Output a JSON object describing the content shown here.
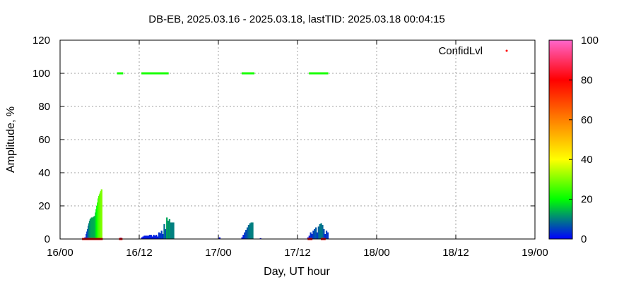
{
  "chart_data": {
    "type": "bar",
    "title": "DB-EB, 2025.03.16 - 2025.03.18, lastTID: 2025.03.18 00:04:15",
    "xlabel": "Day, UT hour",
    "ylabel": "Amplitude, %",
    "xlim": [
      0,
      72
    ],
    "ylim": [
      0,
      120
    ],
    "grid": true,
    "x_ticks": [
      {
        "x": 0,
        "label": "16/00"
      },
      {
        "x": 12,
        "label": "16/12"
      },
      {
        "x": 24,
        "label": "17/00"
      },
      {
        "x": 36,
        "label": "17/12"
      },
      {
        "x": 48,
        "label": "18/00"
      },
      {
        "x": 60,
        "label": "18/12"
      },
      {
        "x": 72,
        "label": "19/00"
      }
    ],
    "y_ticks": [
      0,
      20,
      40,
      60,
      80,
      100,
      120
    ],
    "legend": {
      "entries": [
        "ConfidLvl"
      ],
      "position": "top-right",
      "color": "#ff0000"
    },
    "colorbar": {
      "range": [
        0,
        100
      ],
      "ticks": [
        0,
        20,
        40,
        60,
        80,
        100
      ],
      "colors": [
        "#0000ff",
        "#00ff00",
        "#ffff00",
        "#ff8000",
        "#ff0000",
        "#ff66cc"
      ]
    },
    "amplitude_series": [
      {
        "x": 3.6,
        "y": 0.4
      },
      {
        "x": 3.8,
        "y": 1.0
      },
      {
        "x": 4.0,
        "y": 3.0
      },
      {
        "x": 4.1,
        "y": 4.5
      },
      {
        "x": 4.2,
        "y": 6.0
      },
      {
        "x": 4.3,
        "y": 8.0
      },
      {
        "x": 4.4,
        "y": 9.5
      },
      {
        "x": 4.5,
        "y": 11.0
      },
      {
        "x": 4.6,
        "y": 12.0
      },
      {
        "x": 4.7,
        "y": 12.5
      },
      {
        "x": 4.8,
        "y": 13.0
      },
      {
        "x": 4.9,
        "y": 13.0
      },
      {
        "x": 5.0,
        "y": 13.0
      },
      {
        "x": 5.1,
        "y": 13.5
      },
      {
        "x": 5.2,
        "y": 13.5
      },
      {
        "x": 5.3,
        "y": 14.0
      },
      {
        "x": 5.4,
        "y": 16.0
      },
      {
        "x": 5.5,
        "y": 18.0
      },
      {
        "x": 5.6,
        "y": 20.0
      },
      {
        "x": 5.7,
        "y": 22.0
      },
      {
        "x": 5.8,
        "y": 24.5
      },
      {
        "x": 5.9,
        "y": 26.0
      },
      {
        "x": 6.0,
        "y": 27.0
      },
      {
        "x": 6.1,
        "y": 28.0
      },
      {
        "x": 6.2,
        "y": 29.0
      },
      {
        "x": 6.3,
        "y": 30.0
      },
      {
        "x": 9.2,
        "y": 0.8
      },
      {
        "x": 12.4,
        "y": 1.0
      },
      {
        "x": 12.6,
        "y": 1.5
      },
      {
        "x": 12.8,
        "y": 2.0
      },
      {
        "x": 13.0,
        "y": 2.0
      },
      {
        "x": 13.2,
        "y": 2.0
      },
      {
        "x": 13.4,
        "y": 2.0
      },
      {
        "x": 13.6,
        "y": 2.5
      },
      {
        "x": 13.8,
        "y": 2.5
      },
      {
        "x": 14.0,
        "y": 1.5
      },
      {
        "x": 14.2,
        "y": 2.5
      },
      {
        "x": 14.4,
        "y": 2.0
      },
      {
        "x": 14.6,
        "y": 2.5
      },
      {
        "x": 14.8,
        "y": 1.5
      },
      {
        "x": 15.0,
        "y": 4.0
      },
      {
        "x": 15.2,
        "y": 3.5
      },
      {
        "x": 15.4,
        "y": 5.0
      },
      {
        "x": 15.6,
        "y": 3.0
      },
      {
        "x": 15.8,
        "y": 9.0
      },
      {
        "x": 16.0,
        "y": 6.0
      },
      {
        "x": 16.2,
        "y": 13.0
      },
      {
        "x": 16.4,
        "y": 11.0
      },
      {
        "x": 16.6,
        "y": 12.0
      },
      {
        "x": 16.8,
        "y": 10.0
      },
      {
        "x": 17.0,
        "y": 10.0
      },
      {
        "x": 17.2,
        "y": 10.0
      },
      {
        "x": 24.2,
        "y": 1.0
      },
      {
        "x": 27.6,
        "y": 1.0
      },
      {
        "x": 27.8,
        "y": 2.5
      },
      {
        "x": 28.0,
        "y": 4.0
      },
      {
        "x": 28.2,
        "y": 5.5
      },
      {
        "x": 28.4,
        "y": 7.0
      },
      {
        "x": 28.6,
        "y": 8.5
      },
      {
        "x": 28.8,
        "y": 9.5
      },
      {
        "x": 29.0,
        "y": 10.0
      },
      {
        "x": 29.2,
        "y": 10.0
      },
      {
        "x": 30.4,
        "y": 0.5
      },
      {
        "x": 37.6,
        "y": 1.0
      },
      {
        "x": 37.8,
        "y": 2.0
      },
      {
        "x": 38.0,
        "y": 4.0
      },
      {
        "x": 38.2,
        "y": 3.0
      },
      {
        "x": 38.4,
        "y": 5.0
      },
      {
        "x": 38.6,
        "y": 6.0
      },
      {
        "x": 38.8,
        "y": 7.0
      },
      {
        "x": 39.0,
        "y": 4.0
      },
      {
        "x": 39.2,
        "y": 7.5
      },
      {
        "x": 39.4,
        "y": 9.0
      },
      {
        "x": 39.6,
        "y": 9.5
      },
      {
        "x": 39.8,
        "y": 8.5
      },
      {
        "x": 40.0,
        "y": 6.0
      },
      {
        "x": 40.2,
        "y": 3.0
      },
      {
        "x": 40.4,
        "y": 5.0
      },
      {
        "x": 40.6,
        "y": 4.0
      }
    ],
    "confidlvl_series": [
      {
        "x": 8.9,
        "y": 100
      },
      {
        "x": 9.1,
        "y": 100
      },
      {
        "x": 9.3,
        "y": 100
      },
      {
        "x": 12.6,
        "y": 100
      },
      {
        "x": 12.8,
        "y": 100
      },
      {
        "x": 13.0,
        "y": 100
      },
      {
        "x": 13.2,
        "y": 100
      },
      {
        "x": 13.4,
        "y": 100
      },
      {
        "x": 13.6,
        "y": 100
      },
      {
        "x": 13.8,
        "y": 100
      },
      {
        "x": 14.0,
        "y": 100
      },
      {
        "x": 14.2,
        "y": 100
      },
      {
        "x": 14.4,
        "y": 100
      },
      {
        "x": 14.6,
        "y": 100
      },
      {
        "x": 14.8,
        "y": 100
      },
      {
        "x": 15.0,
        "y": 100
      },
      {
        "x": 15.2,
        "y": 100
      },
      {
        "x": 15.4,
        "y": 100
      },
      {
        "x": 15.6,
        "y": 100
      },
      {
        "x": 15.8,
        "y": 100
      },
      {
        "x": 16.0,
        "y": 100
      },
      {
        "x": 16.2,
        "y": 100
      },
      {
        "x": 27.8,
        "y": 100
      },
      {
        "x": 28.0,
        "y": 100
      },
      {
        "x": 28.2,
        "y": 100
      },
      {
        "x": 28.4,
        "y": 100
      },
      {
        "x": 28.6,
        "y": 100
      },
      {
        "x": 28.8,
        "y": 100
      },
      {
        "x": 29.0,
        "y": 100
      },
      {
        "x": 29.2,
        "y": 100
      },
      {
        "x": 38.0,
        "y": 100
      },
      {
        "x": 38.2,
        "y": 100
      },
      {
        "x": 38.6,
        "y": 100
      },
      {
        "x": 39.0,
        "y": 100
      },
      {
        "x": 39.4,
        "y": 100
      },
      {
        "x": 39.6,
        "y": 100
      },
      {
        "x": 39.8,
        "y": 100
      },
      {
        "x": 40.2,
        "y": 100
      },
      {
        "x": 40.4,
        "y": 100
      },
      {
        "x": 3.6,
        "y": 0
      },
      {
        "x": 3.8,
        "y": 0
      },
      {
        "x": 4.0,
        "y": 0
      },
      {
        "x": 4.2,
        "y": 0
      },
      {
        "x": 4.4,
        "y": 0
      },
      {
        "x": 4.6,
        "y": 0
      },
      {
        "x": 4.8,
        "y": 0
      },
      {
        "x": 5.0,
        "y": 0
      },
      {
        "x": 5.2,
        "y": 0
      },
      {
        "x": 5.4,
        "y": 0
      },
      {
        "x": 5.6,
        "y": 0
      },
      {
        "x": 5.8,
        "y": 0
      },
      {
        "x": 6.0,
        "y": 0
      },
      {
        "x": 6.2,
        "y": 0
      },
      {
        "x": 9.2,
        "y": 0
      },
      {
        "x": 37.8,
        "y": 0
      },
      {
        "x": 38.0,
        "y": 0
      },
      {
        "x": 39.8,
        "y": 0
      },
      {
        "x": 40.0,
        "y": 0
      }
    ]
  }
}
